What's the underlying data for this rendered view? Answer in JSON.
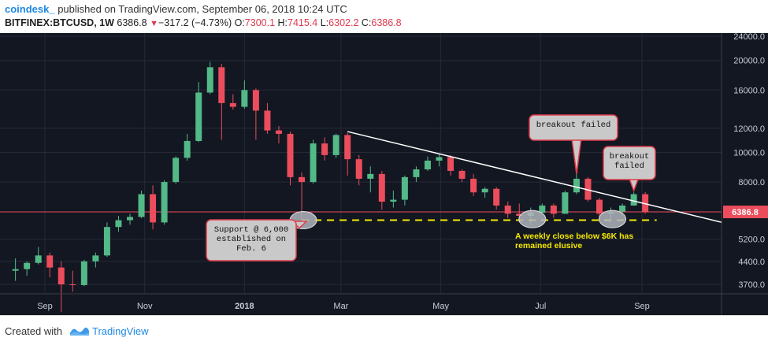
{
  "header": {
    "author": "coindesk_",
    "published_text": " published on TradingView.com, September 06, 2018 10:24 UTC",
    "symbol": "BITFINEX:BTCUSD, 1W",
    "last": "6386.8",
    "change": "−317.2 (−4.73%)",
    "o_label": "O:",
    "o_value": "7300.1",
    "h_label": "H:",
    "h_value": "7415.4",
    "l_label": "L:",
    "l_value": "6302.2",
    "c_label": "C:",
    "c_value": "6386.8"
  },
  "footer": {
    "created_with": "Created with",
    "brand": "TradingView"
  },
  "colors": {
    "background": "#131722",
    "bull": "#53b987",
    "bear": "#eb4d5c",
    "trendline": "#ffffff",
    "support": "#f5e800",
    "last_price_line": "#eb4d5c"
  },
  "chart_data": {
    "type": "candlestick",
    "y_scale": "log",
    "y_ticks": [
      "24000.0",
      "20000.0",
      "16000.0",
      "12000.0",
      "10000.0",
      "8000.0",
      "6386.8",
      "5200.0",
      "4400.0",
      "3700.0"
    ],
    "y_tick_values": [
      24000,
      20000,
      16000,
      12000,
      10000,
      8000,
      5200,
      4400,
      3700
    ],
    "last_price": 6386.8,
    "last_price_label": "6386.8",
    "x_ticks": [
      {
        "label": "Sep",
        "date": "2017-09-01",
        "bold": false
      },
      {
        "label": "Nov",
        "date": "2017-11-01",
        "bold": false
      },
      {
        "label": "2018",
        "date": "2018-01-01",
        "bold": true
      },
      {
        "label": "Mar",
        "date": "2018-03-01",
        "bold": false
      },
      {
        "label": "May",
        "date": "2018-05-01",
        "bold": false
      },
      {
        "label": "Jul",
        "date": "2018-07-01",
        "bold": false
      },
      {
        "label": "Sep",
        "date": "2018-09-01",
        "bold": false
      }
    ],
    "candles": [
      {
        "date": "2017-08-14",
        "o": 4100,
        "h": 4500,
        "l": 3800,
        "c": 4150
      },
      {
        "date": "2017-08-21",
        "o": 4150,
        "h": 4400,
        "l": 3950,
        "c": 4350
      },
      {
        "date": "2017-08-28",
        "o": 4350,
        "h": 4900,
        "l": 4300,
        "c": 4600
      },
      {
        "date": "2017-09-04",
        "o": 4600,
        "h": 4700,
        "l": 3900,
        "c": 4200
      },
      {
        "date": "2017-09-11",
        "o": 4200,
        "h": 4400,
        "l": 3000,
        "c": 3700
      },
      {
        "date": "2017-09-18",
        "o": 3700,
        "h": 4100,
        "l": 3500,
        "c": 3680
      },
      {
        "date": "2017-09-25",
        "o": 3680,
        "h": 4450,
        "l": 3650,
        "c": 4400
      },
      {
        "date": "2017-10-02",
        "o": 4400,
        "h": 4700,
        "l": 4200,
        "c": 4600
      },
      {
        "date": "2017-10-09",
        "o": 4600,
        "h": 5900,
        "l": 4550,
        "c": 5700
      },
      {
        "date": "2017-10-16",
        "o": 5700,
        "h": 6200,
        "l": 5500,
        "c": 6000
      },
      {
        "date": "2017-10-23",
        "o": 6000,
        "h": 6300,
        "l": 5800,
        "c": 6150
      },
      {
        "date": "2017-10-30",
        "o": 6150,
        "h": 7500,
        "l": 6100,
        "c": 7300
      },
      {
        "date": "2017-11-06",
        "o": 7300,
        "h": 7800,
        "l": 5600,
        "c": 5900
      },
      {
        "date": "2017-11-13",
        "o": 5900,
        "h": 8100,
        "l": 5800,
        "c": 8000
      },
      {
        "date": "2017-11-20",
        "o": 8000,
        "h": 9700,
        "l": 7900,
        "c": 9600
      },
      {
        "date": "2017-11-27",
        "o": 9600,
        "h": 11500,
        "l": 9400,
        "c": 10900
      },
      {
        "date": "2017-12-04",
        "o": 10900,
        "h": 17000,
        "l": 10800,
        "c": 15700
      },
      {
        "date": "2017-12-11",
        "o": 15700,
        "h": 19800,
        "l": 15500,
        "c": 19000
      },
      {
        "date": "2017-12-18",
        "o": 19000,
        "h": 19500,
        "l": 11000,
        "c": 14500
      },
      {
        "date": "2017-12-25",
        "o": 14500,
        "h": 15500,
        "l": 13800,
        "c": 14100
      },
      {
        "date": "2018-01-01",
        "o": 14100,
        "h": 17200,
        "l": 13900,
        "c": 16000
      },
      {
        "date": "2018-01-08",
        "o": 16000,
        "h": 16200,
        "l": 11000,
        "c": 13700
      },
      {
        "date": "2018-01-15",
        "o": 13700,
        "h": 14500,
        "l": 11500,
        "c": 11800
      },
      {
        "date": "2018-01-22",
        "o": 11800,
        "h": 12200,
        "l": 10700,
        "c": 11500
      },
      {
        "date": "2018-01-29",
        "o": 11500,
        "h": 11700,
        "l": 7800,
        "c": 8300
      },
      {
        "date": "2018-02-05",
        "o": 8300,
        "h": 8600,
        "l": 6000,
        "c": 8000
      },
      {
        "date": "2018-02-12",
        "o": 8000,
        "h": 11000,
        "l": 7900,
        "c": 10700
      },
      {
        "date": "2018-02-19",
        "o": 10700,
        "h": 11200,
        "l": 9400,
        "c": 9800
      },
      {
        "date": "2018-02-26",
        "o": 9800,
        "h": 11500,
        "l": 9600,
        "c": 11400
      },
      {
        "date": "2018-03-05",
        "o": 11400,
        "h": 11600,
        "l": 8400,
        "c": 9500
      },
      {
        "date": "2018-03-12",
        "o": 9500,
        "h": 9800,
        "l": 7800,
        "c": 8200
      },
      {
        "date": "2018-03-19",
        "o": 8200,
        "h": 9000,
        "l": 7400,
        "c": 8500
      },
      {
        "date": "2018-03-26",
        "o": 8500,
        "h": 8700,
        "l": 6500,
        "c": 6900
      },
      {
        "date": "2018-04-02",
        "o": 6900,
        "h": 7500,
        "l": 6600,
        "c": 7000
      },
      {
        "date": "2018-04-09",
        "o": 7000,
        "h": 8400,
        "l": 6700,
        "c": 8300
      },
      {
        "date": "2018-04-16",
        "o": 8300,
        "h": 9000,
        "l": 8000,
        "c": 8800
      },
      {
        "date": "2018-04-23",
        "o": 8800,
        "h": 9700,
        "l": 8700,
        "c": 9400
      },
      {
        "date": "2018-04-30",
        "o": 9400,
        "h": 9900,
        "l": 9000,
        "c": 9650
      },
      {
        "date": "2018-05-07",
        "o": 9650,
        "h": 9800,
        "l": 8400,
        "c": 8700
      },
      {
        "date": "2018-05-14",
        "o": 8700,
        "h": 8800,
        "l": 8000,
        "c": 8200
      },
      {
        "date": "2018-05-21",
        "o": 8200,
        "h": 8500,
        "l": 7200,
        "c": 7400
      },
      {
        "date": "2018-05-28",
        "o": 7400,
        "h": 7700,
        "l": 7100,
        "c": 7600
      },
      {
        "date": "2018-06-04",
        "o": 7600,
        "h": 7700,
        "l": 6500,
        "c": 6700
      },
      {
        "date": "2018-06-11",
        "o": 6700,
        "h": 6900,
        "l": 6100,
        "c": 6300
      },
      {
        "date": "2018-06-18",
        "o": 6300,
        "h": 6800,
        "l": 5900,
        "c": 6200
      },
      {
        "date": "2018-06-25",
        "o": 6200,
        "h": 6600,
        "l": 5800,
        "c": 6350
      },
      {
        "date": "2018-07-02",
        "o": 6350,
        "h": 6800,
        "l": 6300,
        "c": 6700
      },
      {
        "date": "2018-07-09",
        "o": 6700,
        "h": 6800,
        "l": 6100,
        "c": 6300
      },
      {
        "date": "2018-07-16",
        "o": 6300,
        "h": 7500,
        "l": 6300,
        "c": 7400
      },
      {
        "date": "2018-07-23",
        "o": 7400,
        "h": 8500,
        "l": 7300,
        "c": 8200
      },
      {
        "date": "2018-07-30",
        "o": 8200,
        "h": 8300,
        "l": 6900,
        "c": 7000
      },
      {
        "date": "2018-08-06",
        "o": 7000,
        "h": 7100,
        "l": 6000,
        "c": 6300
      },
      {
        "date": "2018-08-13",
        "o": 6300,
        "h": 6600,
        "l": 5900,
        "c": 6400
      },
      {
        "date": "2018-08-20",
        "o": 6400,
        "h": 6800,
        "l": 6200,
        "c": 6700
      },
      {
        "date": "2018-08-27",
        "o": 6700,
        "h": 7400,
        "l": 6700,
        "c": 7300
      },
      {
        "date": "2018-09-03",
        "o": 7300,
        "h": 7415.4,
        "l": 6302.2,
        "c": 6386.8
      }
    ],
    "trendline": [
      {
        "date": "2018-03-05",
        "y": 11700
      },
      {
        "date": "2018-10-20",
        "y": 5900
      }
    ],
    "support_line": {
      "y": 6000,
      "from": "2018-02-05",
      "to": "2018-09-10"
    },
    "highlights": [
      {
        "date": "2018-02-05",
        "y": 6000
      },
      {
        "date": "2018-06-25",
        "y": 6050
      },
      {
        "date": "2018-08-13",
        "y": 6050
      }
    ],
    "annotations": {
      "support": "Support @ 6,000\nestablished on\nFeb. 6",
      "breakout1": "breakout failed",
      "breakout2": "breakout\nfailed",
      "weekly_close": "A weekly close below $6K has\nremained elusive"
    }
  }
}
